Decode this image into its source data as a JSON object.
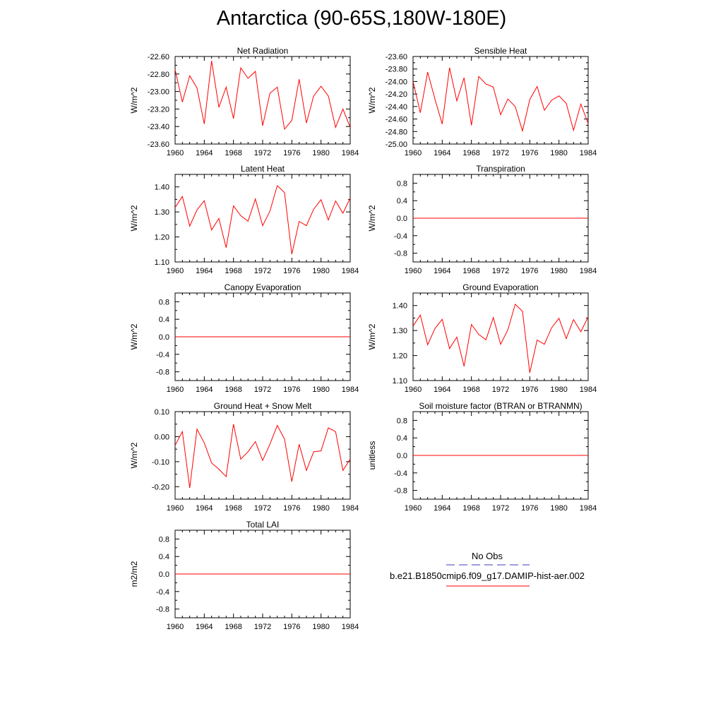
{
  "title": "Antarctica (90-65S,180W-180E)",
  "colors": {
    "model_line": "#ff0000",
    "obs_line": "#3c3cb4",
    "axis": "#000000"
  },
  "legend": {
    "no_obs_label": "No Obs",
    "model_label": "b.e21.B1850cmip6.f09_g17.DAMIP-hist-aer.002"
  },
  "chart_data": [
    {
      "type": "line",
      "title": "Net Radiation",
      "ylabel": "W/m^2",
      "xlim": [
        1960,
        1984
      ],
      "ylim": [
        -23.6,
        -22.6
      ],
      "yticks": [
        -22.6,
        -22.8,
        -23.0,
        -23.2,
        -23.4,
        -23.6
      ],
      "yticklabels": [
        "-22.60",
        "-22.80",
        "-23.00",
        "-23.20",
        "-23.40",
        "-23.60"
      ],
      "xticks": [
        1960,
        1964,
        1968,
        1972,
        1976,
        1980,
        1984
      ],
      "xticklabels": [
        "1960",
        "1964",
        "1968",
        "1972",
        "1976",
        "1980",
        "1984"
      ],
      "x": [
        1960,
        1961,
        1962,
        1963,
        1964,
        1965,
        1966,
        1967,
        1968,
        1969,
        1970,
        1971,
        1972,
        1973,
        1974,
        1975,
        1976,
        1977,
        1978,
        1979,
        1980,
        1981,
        1982,
        1983,
        1984
      ],
      "series": [
        {
          "values": [
            -22.75,
            -23.12,
            -22.82,
            -22.96,
            -23.37,
            -22.65,
            -23.18,
            -22.95,
            -23.31,
            -22.73,
            -22.85,
            -22.77,
            -23.39,
            -23.02,
            -22.95,
            -23.43,
            -23.33,
            -22.86,
            -23.36,
            -23.05,
            -22.94,
            -23.05,
            -23.41,
            -23.2,
            -23.41
          ]
        }
      ]
    },
    {
      "type": "line",
      "title": "Sensible Heat",
      "ylabel": "W/m^2",
      "xlim": [
        1960,
        1984
      ],
      "ylim": [
        -25.0,
        -23.6
      ],
      "yticks": [
        -23.6,
        -23.8,
        -24.0,
        -24.2,
        -24.4,
        -24.6,
        -24.8,
        -25.0
      ],
      "yticklabels": [
        "-23.60",
        "-23.80",
        "-24.00",
        "-24.20",
        "-24.40",
        "-24.60",
        "-24.80",
        "-25.00"
      ],
      "xticks": [
        1960,
        1964,
        1968,
        1972,
        1976,
        1980,
        1984
      ],
      "xticklabels": [
        "1960",
        "1964",
        "1968",
        "1972",
        "1976",
        "1980",
        "1984"
      ],
      "x": [
        1960,
        1961,
        1962,
        1963,
        1964,
        1965,
        1966,
        1967,
        1968,
        1969,
        1970,
        1971,
        1972,
        1973,
        1974,
        1975,
        1976,
        1977,
        1978,
        1979,
        1980,
        1981,
        1982,
        1983,
        1984
      ],
      "series": [
        {
          "values": [
            -24.0,
            -24.5,
            -23.85,
            -24.28,
            -24.68,
            -23.78,
            -24.31,
            -23.94,
            -24.7,
            -23.92,
            -24.04,
            -24.09,
            -24.53,
            -24.28,
            -24.4,
            -24.79,
            -24.29,
            -24.08,
            -24.46,
            -24.3,
            -24.23,
            -24.35,
            -24.78,
            -24.36,
            -24.67
          ]
        }
      ]
    },
    {
      "type": "line",
      "title": "Latent Heat",
      "ylabel": "W/m^2",
      "xlim": [
        1960,
        1984
      ],
      "ylim": [
        1.1,
        1.45
      ],
      "yticks": [
        1.1,
        1.2,
        1.3,
        1.4
      ],
      "yticklabels": [
        "1.10",
        "1.20",
        "1.30",
        "1.40"
      ],
      "xticks": [
        1960,
        1964,
        1968,
        1972,
        1976,
        1980,
        1984
      ],
      "xticklabels": [
        "1960",
        "1964",
        "1968",
        "1972",
        "1976",
        "1980",
        "1984"
      ],
      "x": [
        1960,
        1961,
        1962,
        1963,
        1964,
        1965,
        1966,
        1967,
        1968,
        1969,
        1970,
        1971,
        1972,
        1973,
        1974,
        1975,
        1976,
        1977,
        1978,
        1979,
        1980,
        1981,
        1982,
        1983,
        1984
      ],
      "series": [
        {
          "values": [
            1.318,
            1.362,
            1.243,
            1.308,
            1.345,
            1.228,
            1.274,
            1.157,
            1.324,
            1.285,
            1.263,
            1.352,
            1.245,
            1.303,
            1.405,
            1.377,
            1.131,
            1.262,
            1.245,
            1.311,
            1.349,
            1.268,
            1.344,
            1.295,
            1.355
          ]
        }
      ]
    },
    {
      "type": "line",
      "title": "Transpiration",
      "ylabel": "W/m^2",
      "xlim": [
        1960,
        1984
      ],
      "ylim": [
        -1.0,
        1.0
      ],
      "yticks": [
        0.8,
        0.4,
        0.0,
        -0.4,
        -0.8
      ],
      "yticklabels": [
        "0.8",
        "0.4",
        "0.0",
        "-0.4",
        "-0.8"
      ],
      "xticks": [
        1960,
        1964,
        1968,
        1972,
        1976,
        1980,
        1984
      ],
      "xticklabels": [
        "1960",
        "1964",
        "1968",
        "1972",
        "1976",
        "1980",
        "1984"
      ],
      "x": [
        1960,
        1984
      ],
      "series": [
        {
          "values": [
            0.0,
            0.0
          ]
        }
      ]
    },
    {
      "type": "line",
      "title": "Canopy Evaporation",
      "ylabel": "W/m^2",
      "xlim": [
        1960,
        1984
      ],
      "ylim": [
        -1.0,
        1.0
      ],
      "yticks": [
        0.8,
        0.4,
        0.0,
        -0.4,
        -0.8
      ],
      "yticklabels": [
        "0.8",
        "0.4",
        "0.0",
        "-0.4",
        "-0.8"
      ],
      "xticks": [
        1960,
        1964,
        1968,
        1972,
        1976,
        1980,
        1984
      ],
      "xticklabels": [
        "1960",
        "1964",
        "1968",
        "1972",
        "1976",
        "1980",
        "1984"
      ],
      "x": [
        1960,
        1984
      ],
      "series": [
        {
          "values": [
            0.0,
            0.0
          ]
        }
      ]
    },
    {
      "type": "line",
      "title": "Ground Evaporation",
      "ylabel": "W/m^2",
      "xlim": [
        1960,
        1984
      ],
      "ylim": [
        1.1,
        1.45
      ],
      "yticks": [
        1.1,
        1.2,
        1.3,
        1.4
      ],
      "yticklabels": [
        "1.10",
        "1.20",
        "1.30",
        "1.40"
      ],
      "xticks": [
        1960,
        1964,
        1968,
        1972,
        1976,
        1980,
        1984
      ],
      "xticklabels": [
        "1960",
        "1964",
        "1968",
        "1972",
        "1976",
        "1980",
        "1984"
      ],
      "x": [
        1960,
        1961,
        1962,
        1963,
        1964,
        1965,
        1966,
        1967,
        1968,
        1969,
        1970,
        1971,
        1972,
        1973,
        1974,
        1975,
        1976,
        1977,
        1978,
        1979,
        1980,
        1981,
        1982,
        1983,
        1984
      ],
      "series": [
        {
          "values": [
            1.318,
            1.362,
            1.243,
            1.308,
            1.345,
            1.228,
            1.274,
            1.157,
            1.324,
            1.285,
            1.263,
            1.352,
            1.245,
            1.303,
            1.405,
            1.377,
            1.131,
            1.262,
            1.245,
            1.311,
            1.349,
            1.268,
            1.344,
            1.295,
            1.355
          ]
        }
      ]
    },
    {
      "type": "line",
      "title": "Ground Heat + Snow Melt",
      "ylabel": "W/m^2",
      "xlim": [
        1960,
        1984
      ],
      "ylim": [
        -0.25,
        0.1
      ],
      "yticks": [
        0.1,
        0.0,
        -0.1,
        -0.2
      ],
      "yticklabels": [
        "0.10",
        "0.00",
        "-0.10",
        "-0.20"
      ],
      "xticks": [
        1960,
        1964,
        1968,
        1972,
        1976,
        1980,
        1984
      ],
      "xticklabels": [
        "1960",
        "1964",
        "1968",
        "1972",
        "1976",
        "1980",
        "1984"
      ],
      "x": [
        1960,
        1961,
        1962,
        1963,
        1964,
        1965,
        1966,
        1967,
        1968,
        1969,
        1970,
        1971,
        1972,
        1973,
        1974,
        1975,
        1976,
        1977,
        1978,
        1979,
        1980,
        1981,
        1982,
        1983,
        1984
      ],
      "series": [
        {
          "values": [
            -0.035,
            0.02,
            -0.205,
            0.03,
            -0.025,
            -0.105,
            -0.13,
            -0.16,
            0.05,
            -0.09,
            -0.06,
            -0.02,
            -0.095,
            -0.03,
            0.045,
            -0.01,
            -0.18,
            -0.03,
            -0.135,
            -0.06,
            -0.057,
            0.035,
            0.02,
            -0.135,
            -0.09
          ]
        }
      ]
    },
    {
      "type": "line",
      "title": "Soil moisture factor (BTRAN or BTRANMN)",
      "ylabel": "unitless",
      "xlim": [
        1960,
        1984
      ],
      "ylim": [
        -1.0,
        1.0
      ],
      "yticks": [
        0.8,
        0.4,
        0.0,
        -0.4,
        -0.8
      ],
      "yticklabels": [
        "0.8",
        "0.4",
        "0.0",
        "-0.4",
        "-0.8"
      ],
      "xticks": [
        1960,
        1964,
        1968,
        1972,
        1976,
        1980,
        1984
      ],
      "xticklabels": [
        "1960",
        "1964",
        "1968",
        "1972",
        "1976",
        "1980",
        "1984"
      ],
      "x": [
        1960,
        1984
      ],
      "series": [
        {
          "values": [
            0.0,
            0.0
          ]
        }
      ]
    },
    {
      "type": "line",
      "title": "Total LAI",
      "ylabel": "m2/m2",
      "xlim": [
        1960,
        1984
      ],
      "ylim": [
        -1.0,
        1.0
      ],
      "yticks": [
        0.8,
        0.4,
        0.0,
        -0.4,
        -0.8
      ],
      "yticklabels": [
        "0.8",
        "0.4",
        "0.0",
        "-0.4",
        "-0.8"
      ],
      "xticks": [
        1960,
        1964,
        1968,
        1972,
        1976,
        1980,
        1984
      ],
      "xticklabels": [
        "1960",
        "1964",
        "1968",
        "1972",
        "1976",
        "1980",
        "1984"
      ],
      "x": [
        1960,
        1984
      ],
      "series": [
        {
          "values": [
            0.0,
            0.0
          ]
        }
      ]
    }
  ]
}
